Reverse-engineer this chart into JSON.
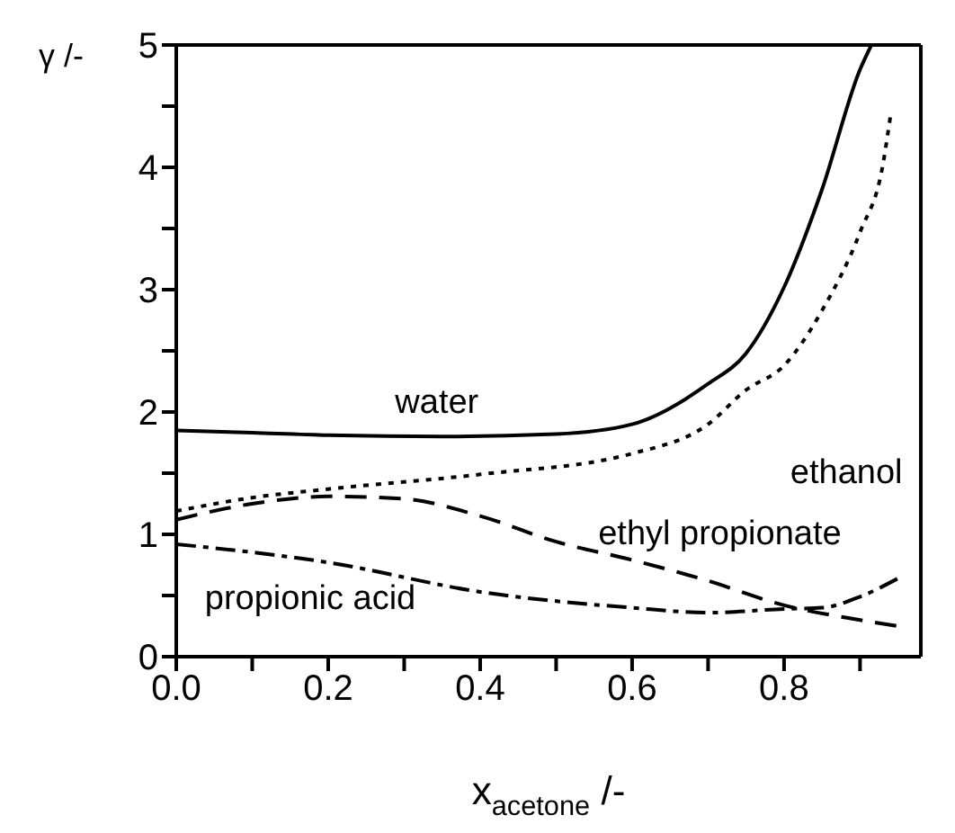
{
  "chart_data": {
    "type": "line",
    "ylabel": "γ /-",
    "xlabel": "x$_{acetone}$ /-",
    "xlim": [
      0,
      0.98
    ],
    "ylim": [
      0,
      5
    ],
    "xticks": [
      {
        "value": 0,
        "label": "0.0"
      },
      {
        "value": 0.1,
        "label": null
      },
      {
        "value": 0.2,
        "label": "0.2"
      },
      {
        "value": 0.3,
        "label": null
      },
      {
        "value": 0.4,
        "label": "0.4"
      },
      {
        "value": 0.5,
        "label": null
      },
      {
        "value": 0.6,
        "label": "0.6"
      },
      {
        "value": 0.7,
        "label": null
      },
      {
        "value": 0.8,
        "label": "0.8"
      },
      {
        "value": 0.9,
        "label": null
      }
    ],
    "yticks": [
      0,
      {
        "value": 0.5,
        "label": null
      },
      1,
      {
        "value": 1.5,
        "label": null
      },
      2,
      {
        "value": 2.5,
        "label": null
      },
      3,
      {
        "value": 3.5,
        "label": null
      },
      4,
      {
        "value": 4.5,
        "label": null
      },
      5
    ],
    "marker": "none",
    "series": [
      {
        "color": "#000000",
        "line_style": "solid",
        "x": [
          0,
          0.1,
          0.2,
          0.35,
          0.5,
          0.6,
          0.7,
          0.75,
          0.8,
          0.85,
          0.9,
          0.915
        ],
        "values": [
          1.85,
          1.83,
          1.81,
          1.8,
          1.82,
          1.9,
          2.23,
          2.48,
          3.02,
          3.82,
          4.8,
          5.0
        ]
      },
      {
        "color": "#000000",
        "line_style": "dotted",
        "x": [
          0,
          0.1,
          0.2,
          0.4,
          0.6,
          0.7,
          0.75,
          0.8,
          0.85,
          0.9,
          0.93,
          0.94
        ],
        "values": [
          1.19,
          1.3,
          1.37,
          1.49,
          1.66,
          1.9,
          2.18,
          2.38,
          2.83,
          3.47,
          4.02,
          4.42
        ]
      },
      {
        "color": "#000000",
        "line_style": "dashed",
        "x": [
          0,
          0.1,
          0.2,
          0.3,
          0.4,
          0.5,
          0.6,
          0.7,
          0.8,
          0.9,
          0.95
        ],
        "values": [
          1.12,
          1.25,
          1.31,
          1.29,
          1.15,
          0.94,
          0.79,
          0.62,
          0.42,
          0.3,
          0.25
        ]
      },
      {
        "color": "#000000",
        "line_style": "dashdot",
        "x": [
          0,
          0.2,
          0.4,
          0.6,
          0.7,
          0.8,
          0.85,
          0.9,
          0.95
        ],
        "values": [
          0.92,
          0.77,
          0.53,
          0.4,
          0.36,
          0.39,
          0.4,
          0.49,
          0.64
        ]
      }
    ],
    "annotations": [
      "water",
      "ethanol",
      "ethyl propionate",
      "propionic acid"
    ]
  }
}
